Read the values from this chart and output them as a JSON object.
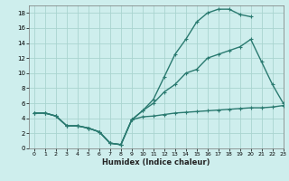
{
  "line1_x": [
    0,
    1,
    2,
    3,
    4,
    5,
    6,
    7,
    8,
    9,
    10,
    11,
    12,
    13,
    14,
    15,
    16,
    17,
    18,
    19,
    20,
    21,
    22,
    23
  ],
  "line1_y": [
    4.7,
    4.7,
    4.3,
    3.0,
    3.0,
    2.7,
    2.2,
    0.7,
    0.5,
    3.8,
    4.2,
    4.3,
    4.5,
    4.7,
    4.8,
    4.9,
    5.0,
    5.1,
    5.2,
    5.3,
    5.4,
    5.4,
    5.5,
    5.7
  ],
  "line2_x": [
    0,
    1,
    2,
    3,
    4,
    5,
    6,
    7,
    8,
    9,
    10,
    11,
    12,
    13,
    14,
    15,
    16,
    17,
    18,
    19,
    20,
    21,
    22,
    23
  ],
  "line2_y": [
    4.7,
    4.7,
    4.3,
    3.0,
    3.0,
    2.7,
    2.2,
    0.7,
    0.5,
    3.8,
    5.0,
    6.0,
    7.5,
    8.5,
    10.0,
    10.5,
    12.0,
    12.5,
    13.0,
    13.5,
    14.5,
    11.5,
    8.5,
    6.0
  ],
  "line3_x": [
    0,
    1,
    2,
    3,
    4,
    5,
    6,
    7,
    8,
    9,
    10,
    11,
    12,
    13,
    14,
    15,
    16,
    17,
    18,
    19,
    20,
    21,
    22,
    23
  ],
  "line3_y": [
    4.7,
    4.7,
    4.3,
    3.0,
    3.0,
    2.7,
    2.2,
    0.7,
    0.5,
    3.8,
    5.0,
    6.5,
    9.5,
    12.5,
    14.5,
    16.8,
    18.0,
    18.5,
    18.5,
    17.8,
    17.5,
    null,
    null,
    null
  ],
  "line_color": "#2a7a70",
  "bg_color": "#ceeeed",
  "grid_color": "#aad4d0",
  "xlim": [
    -0.5,
    23
  ],
  "ylim": [
    0,
    19
  ],
  "yticks": [
    0,
    2,
    4,
    6,
    8,
    10,
    12,
    14,
    16,
    18
  ],
  "xticks": [
    0,
    1,
    2,
    3,
    4,
    5,
    6,
    7,
    8,
    9,
    10,
    11,
    12,
    13,
    14,
    15,
    16,
    17,
    18,
    19,
    20,
    21,
    22,
    23
  ],
  "xlabel": "Humidex (Indice chaleur)",
  "markersize": 3.5,
  "linewidth": 1.0
}
